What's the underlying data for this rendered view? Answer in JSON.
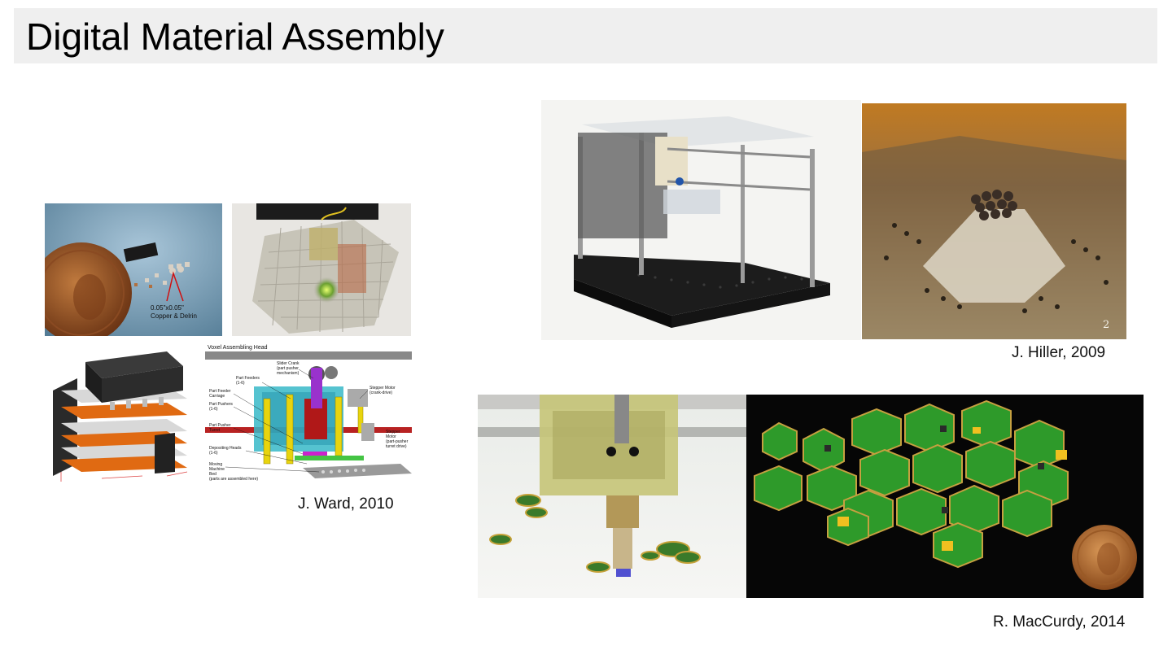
{
  "slide": {
    "title": "Digital Material Assembly"
  },
  "ward_group": {
    "caption": "J. Ward, 2010",
    "photo_voxels": {
      "annotation_line1": "0.05\"x0.05\"",
      "annotation_line2": "Copper & Delrin"
    },
    "diagram": {
      "heading": "Voxel Assembling Head",
      "labels": {
        "slider_crank": "Slider Crank",
        "slider_crank_sub": "(part pusher",
        "slider_crank_sub2": "mechanism)",
        "part_feeders": "Part Feeders",
        "part_feeders_sub": "(1-6)",
        "stepper_motor": "Stepper Motor",
        "stepper_motor_sub": "(crank-drive)",
        "part_feeder_carriage": "Part Feeder",
        "part_feeder_carriage_sub": "Carriage",
        "part_pushers": "Part Pushers",
        "part_pushers_sub": "(1-6)",
        "part_pusher_turret": "Part Pusher",
        "part_pusher_turret_sub": "Turret",
        "stepper_motor2": "Stepper",
        "stepper_motor2_sub": "Motor",
        "stepper_motor2_sub2": "(part-pusher",
        "stepper_motor2_sub3": "turret drive)",
        "depositing_heads": "Depositing Heads",
        "depositing_heads_sub": "(1-6)",
        "moving_machine_bed": "Moving",
        "moving_machine_bed_sub": "Machine",
        "moving_machine_bed_sub2": "Bed",
        "moving_machine_bed_sub3": "(parts are assembled here)"
      }
    }
  },
  "hiller_group": {
    "caption": "J. Hiller, 2009",
    "photo_pyramid": {
      "corner_number": "2"
    }
  },
  "maccurdy_group": {
    "caption": "R. MacCurdy, 2014"
  },
  "colors": {
    "title_bar": "#efefef",
    "pcb_green": "#2e9a2a",
    "penny_copper": "#b5652c",
    "chip_orange": "#e06a12",
    "pyramid_bg": "#d9a355"
  }
}
